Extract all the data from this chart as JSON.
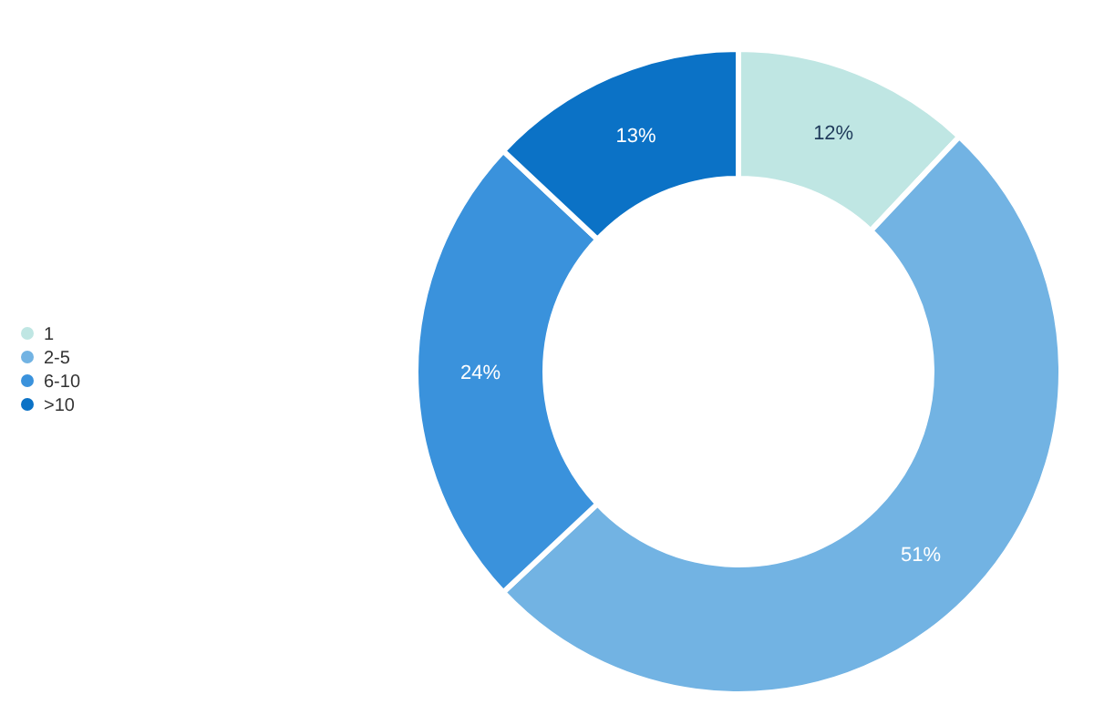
{
  "chart_data": {
    "type": "donut",
    "categories": [
      "1",
      "2-5",
      "6-10",
      ">10"
    ],
    "values": [
      12,
      51,
      24,
      13
    ],
    "colors": [
      "#bfe6e3",
      "#72b3e3",
      "#3a92dc",
      "#0b72c6"
    ],
    "value_labels": [
      "12%",
      "51%",
      "24%",
      "13%"
    ],
    "legend": "left"
  }
}
